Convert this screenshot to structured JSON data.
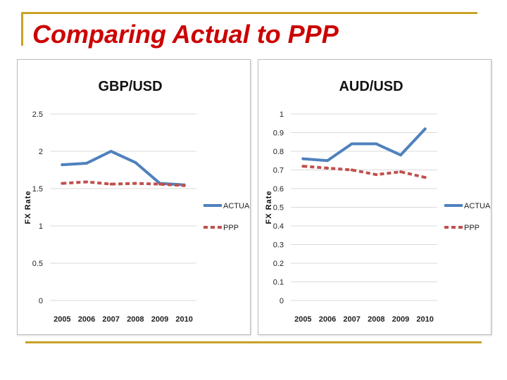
{
  "slide": {
    "title": "Comparing Actual to PPP"
  },
  "colors": {
    "accent_gold": "#c9a227",
    "title_red": "#cc0000",
    "actual_line": "#4f81bd",
    "ppp_line": "#c0504d",
    "grid": "#d9d9d9"
  },
  "chart_data": [
    {
      "type": "line",
      "title": "GBP/USD",
      "xlabel": "",
      "ylabel": "FX Rate",
      "categories": [
        "2005",
        "2006",
        "2007",
        "2008",
        "2009",
        "2010"
      ],
      "y_ticks": [
        "0",
        "0.5",
        "1",
        "1.5",
        "2",
        "2.5"
      ],
      "ylim": [
        0,
        2.5
      ],
      "grid": true,
      "legend_position": "right",
      "series": [
        {
          "name": "ACTUAL",
          "style": "solid",
          "values": [
            1.82,
            1.84,
            2.0,
            1.85,
            1.57,
            1.55
          ]
        },
        {
          "name": "PPP",
          "style": "dashed",
          "values": [
            1.57,
            1.59,
            1.56,
            1.57,
            1.56,
            1.54
          ]
        }
      ]
    },
    {
      "type": "line",
      "title": "AUD/USD",
      "xlabel": "",
      "ylabel": "FX Rate",
      "categories": [
        "2005",
        "2006",
        "2007",
        "2008",
        "2009",
        "2010"
      ],
      "y_ticks": [
        "0",
        "0.1",
        "0.2",
        "0.3",
        "0.4",
        "0.5",
        "0.6",
        "0.7",
        "0.8",
        "0.9",
        "1"
      ],
      "ylim": [
        0,
        1
      ],
      "grid": true,
      "legend_position": "right",
      "series": [
        {
          "name": "ACTUAL",
          "style": "solid",
          "values": [
            0.76,
            0.75,
            0.84,
            0.84,
            0.78,
            0.92
          ]
        },
        {
          "name": "PPP",
          "style": "dashed",
          "values": [
            0.72,
            0.71,
            0.7,
            0.675,
            0.69,
            0.66
          ]
        }
      ]
    }
  ]
}
